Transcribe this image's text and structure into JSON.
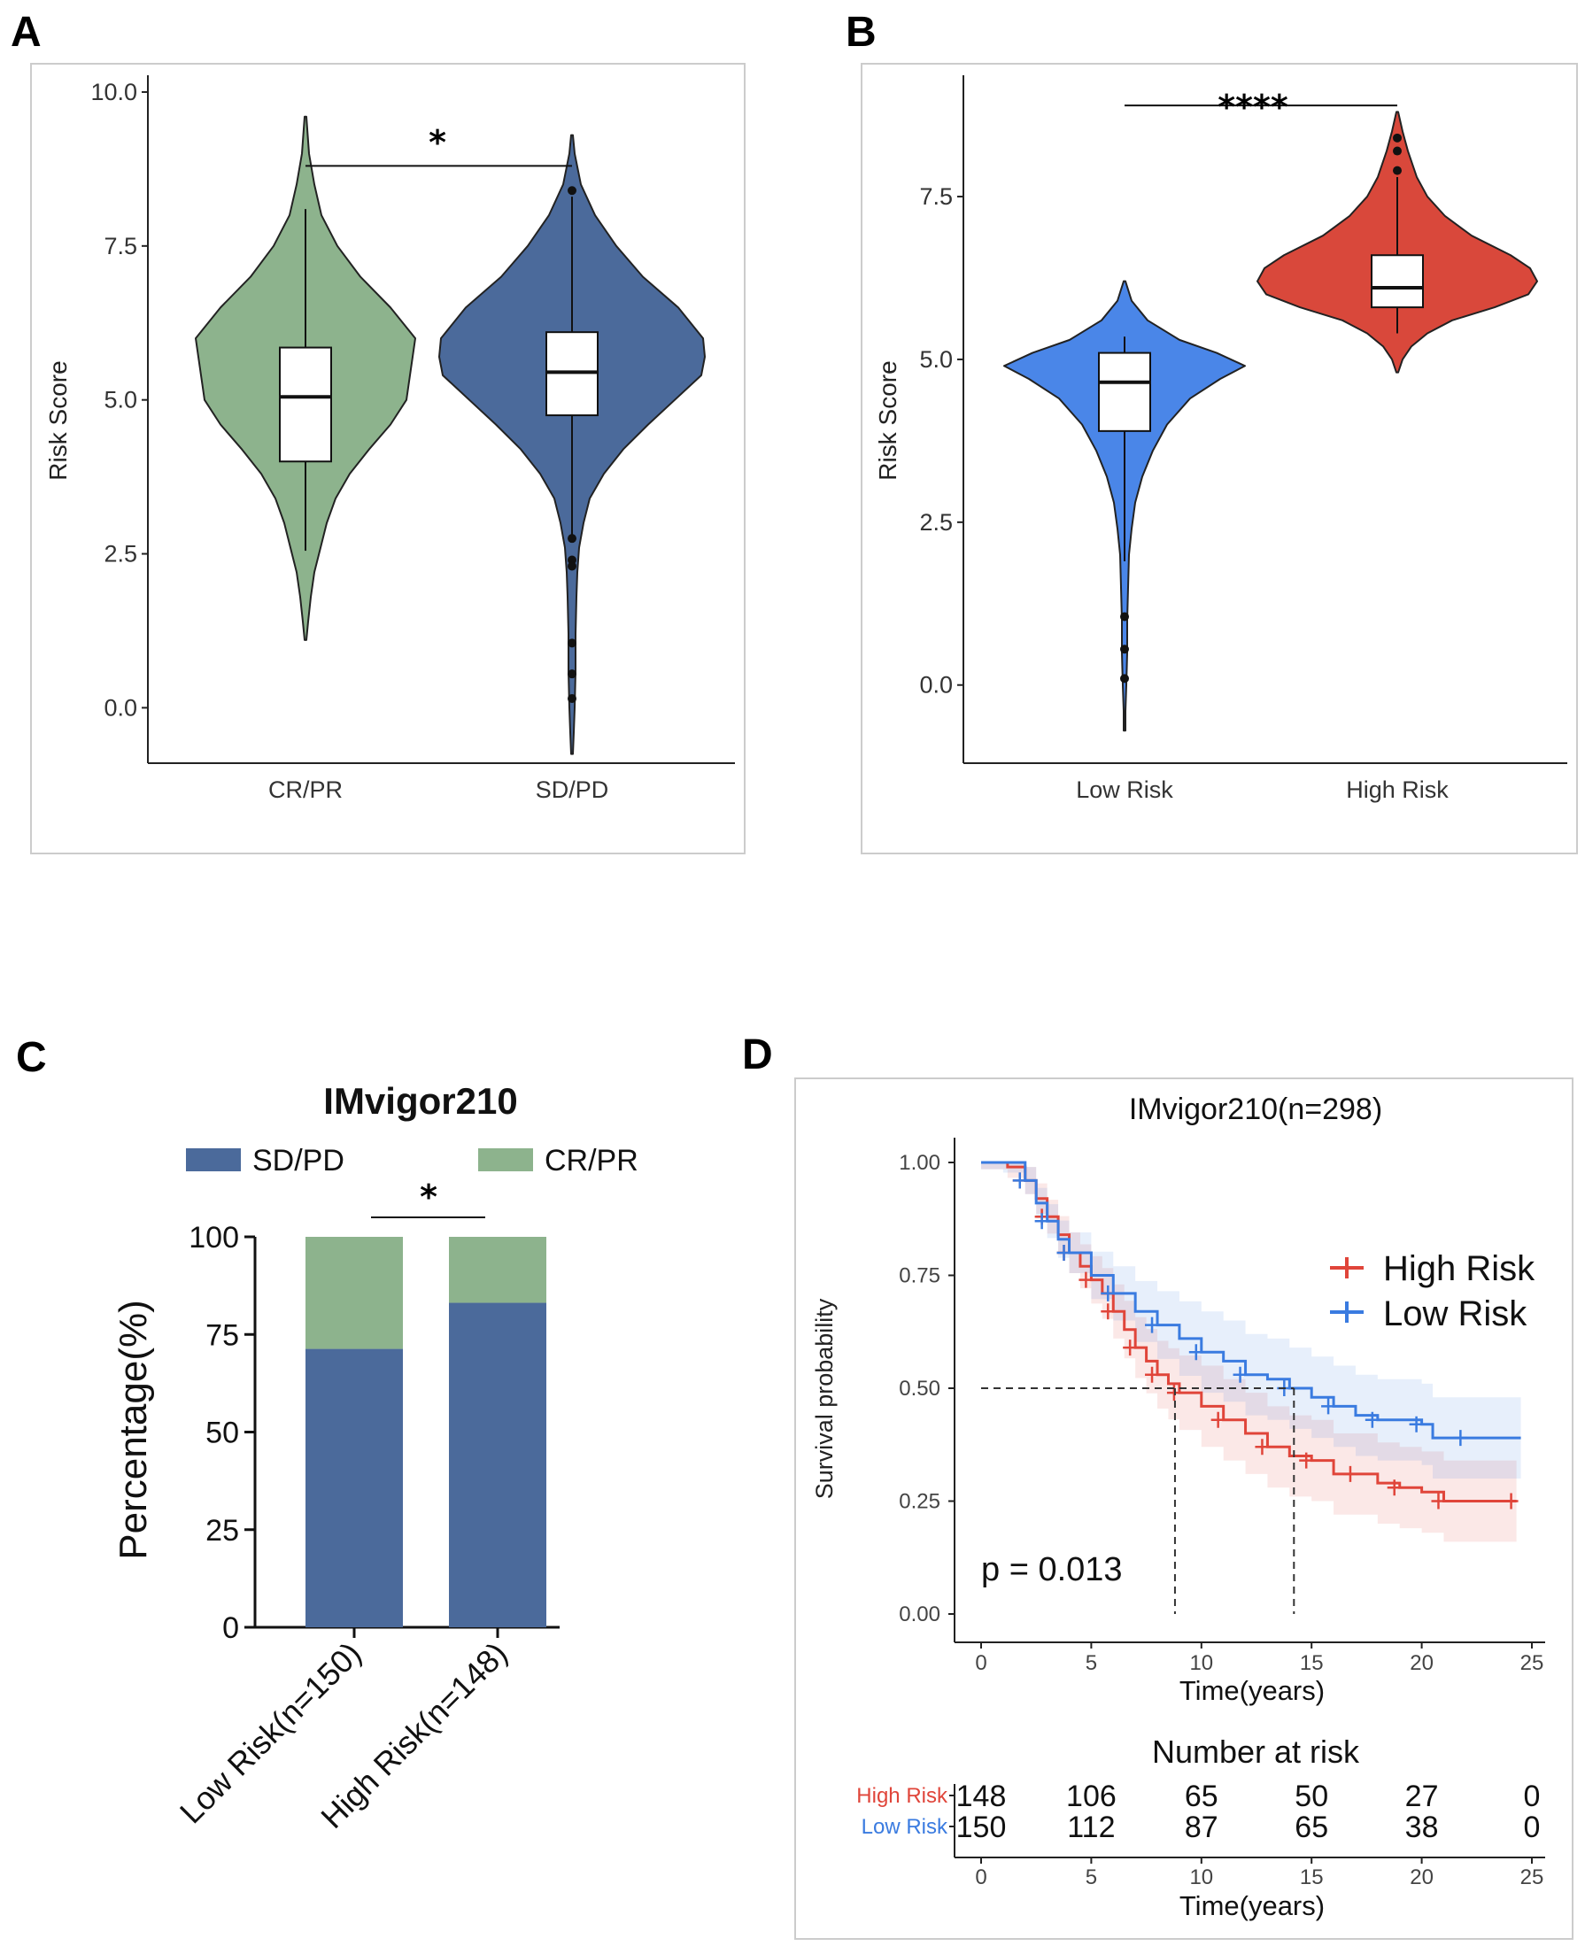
{
  "colors": {
    "green": "#8DB38D",
    "navy": "#4B6A9B",
    "blue": "#4A86E8",
    "red": "#D9483B",
    "km_red": "#E0453A",
    "km_blue": "#3A7BE0"
  },
  "chart_data": [
    {
      "id": "A",
      "type": "violin",
      "panel_label": "A",
      "ylabel": "Risk Score",
      "ylim": [
        -0.9,
        10.1
      ],
      "yticks": [
        "10.0",
        "7.5",
        "5.0",
        "2.5",
        "0.0"
      ],
      "ytick_values": [
        10.0,
        7.5,
        5.0,
        2.5,
        0.0
      ],
      "categories": [
        "CR/PR",
        "SD/PD"
      ],
      "significance": "*",
      "groups": [
        {
          "name": "CR/PR",
          "color": "green",
          "min": 1.1,
          "max": 9.6,
          "q1": 4.0,
          "median": 5.05,
          "q3": 5.85,
          "whisker_low": 2.55,
          "whisker_high": 8.1,
          "outliers": []
        },
        {
          "name": "SD/PD",
          "color": "navy",
          "min": -0.75,
          "max": 9.3,
          "q1": 4.75,
          "median": 5.45,
          "q3": 6.1,
          "whisker_low": 2.8,
          "whisker_high": 8.3,
          "outliers": [
            8.4,
            2.75,
            2.4,
            2.3,
            1.05,
            0.55,
            0.15
          ]
        }
      ]
    },
    {
      "id": "B",
      "type": "violin",
      "panel_label": "B",
      "ylabel": "Risk Score",
      "ylim": [
        -1.2,
        9.2
      ],
      "yticks": [
        "7.5",
        "5.0",
        "2.5",
        "0.0"
      ],
      "ytick_values": [
        7.5,
        5.0,
        2.5,
        0.0
      ],
      "categories": [
        "Low Risk",
        "High Risk"
      ],
      "significance": "****",
      "groups": [
        {
          "name": "Low Risk",
          "color": "blue",
          "min": -0.7,
          "max": 6.2,
          "q1": 3.9,
          "median": 4.65,
          "q3": 5.1,
          "whisker_low": 1.9,
          "whisker_high": 5.35,
          "outliers": [
            1.05,
            0.55,
            0.1
          ]
        },
        {
          "name": "High Risk",
          "color": "red",
          "min": 4.8,
          "max": 8.8,
          "q1": 5.8,
          "median": 6.1,
          "q3": 6.6,
          "whisker_low": 5.4,
          "whisker_high": 7.8,
          "outliers": [
            7.9,
            8.2,
            8.4
          ]
        }
      ]
    },
    {
      "id": "C",
      "type": "bar",
      "stacked": true,
      "panel_label": "C",
      "title": "IMvigor210",
      "ylabel": "Percentage(%)",
      "ylim": [
        0,
        100
      ],
      "yticks": [
        "100",
        "75",
        "50",
        "25",
        "0"
      ],
      "ytick_values": [
        100,
        75,
        50,
        25,
        0
      ],
      "categories": [
        "Low Risk(n=150)",
        "High Risk(n=148)"
      ],
      "significance": "*",
      "legend": [
        "SD/PD",
        "CR/PR"
      ],
      "series": [
        {
          "name": "SD/PD",
          "color": "navy",
          "values": [
            71.3,
            83.1
          ]
        },
        {
          "name": "CR/PR",
          "color": "green",
          "values": [
            28.7,
            16.9
          ]
        }
      ]
    },
    {
      "id": "D",
      "type": "line",
      "subtype": "kaplan-meier",
      "panel_label": "D",
      "title": "IMvigor210(n=298)",
      "xlabel": "Time(years)",
      "ylabel": "Survival probability",
      "xlim": [
        0,
        25
      ],
      "ylim": [
        0,
        1
      ],
      "xticks": [
        "0",
        "5",
        "10",
        "15",
        "20",
        "25"
      ],
      "xtick_values": [
        0,
        5,
        10,
        15,
        20,
        25
      ],
      "yticks": [
        "1.00",
        "0.75",
        "0.50",
        "0.25",
        "0.00"
      ],
      "ytick_values": [
        1.0,
        0.75,
        0.5,
        0.25,
        0.0
      ],
      "pvalue": "p = 0.013",
      "legend": [
        "High Risk",
        "Low Risk"
      ],
      "median_survival": {
        "High Risk": 8.8,
        "Low Risk": 14.2
      },
      "series": [
        {
          "name": "High Risk",
          "color": "km_red",
          "x": [
            0,
            1.2,
            2.0,
            2.5,
            3.0,
            3.5,
            4.0,
            4.5,
            5.0,
            5.5,
            6.0,
            6.5,
            7.0,
            7.5,
            8.0,
            8.5,
            9.0,
            10.0,
            11.0,
            12.0,
            13.0,
            14.0,
            15.0,
            16.0,
            17.0,
            18.0,
            19.0,
            20.0,
            21.0,
            22.0,
            24.3
          ],
          "y": [
            1.0,
            0.99,
            0.96,
            0.92,
            0.88,
            0.84,
            0.8,
            0.77,
            0.74,
            0.71,
            0.67,
            0.63,
            0.59,
            0.56,
            0.53,
            0.51,
            0.49,
            0.46,
            0.43,
            0.4,
            0.37,
            0.35,
            0.34,
            0.31,
            0.31,
            0.29,
            0.28,
            0.27,
            0.25,
            0.25,
            0.25
          ]
        },
        {
          "name": "Low Risk",
          "color": "km_blue",
          "x": [
            0,
            1.0,
            2.0,
            2.5,
            3.0,
            3.5,
            4.0,
            5.0,
            6.0,
            7.0,
            8.0,
            9.0,
            10.0,
            11.0,
            12.0,
            13.0,
            14.0,
            15.0,
            16.0,
            17.0,
            18.0,
            19.0,
            20.0,
            20.5,
            22.0,
            24.5
          ],
          "y": [
            1.0,
            1.0,
            0.96,
            0.91,
            0.87,
            0.83,
            0.8,
            0.75,
            0.71,
            0.67,
            0.64,
            0.61,
            0.58,
            0.56,
            0.53,
            0.52,
            0.5,
            0.48,
            0.46,
            0.44,
            0.43,
            0.43,
            0.42,
            0.39,
            0.39,
            0.39
          ]
        }
      ],
      "risk_table": {
        "title": "Number at risk",
        "rows": [
          {
            "name": "High Risk",
            "color": "km_red",
            "values": [
              "148",
              "106",
              "65",
              "50",
              "27",
              "0"
            ]
          },
          {
            "name": "Low Risk",
            "color": "km_blue",
            "values": [
              "150",
              "112",
              "87",
              "65",
              "38",
              "0"
            ]
          }
        ],
        "xticks": [
          "0",
          "5",
          "10",
          "15",
          "20",
          "25"
        ],
        "xlabel": "Time(years)"
      }
    }
  ]
}
